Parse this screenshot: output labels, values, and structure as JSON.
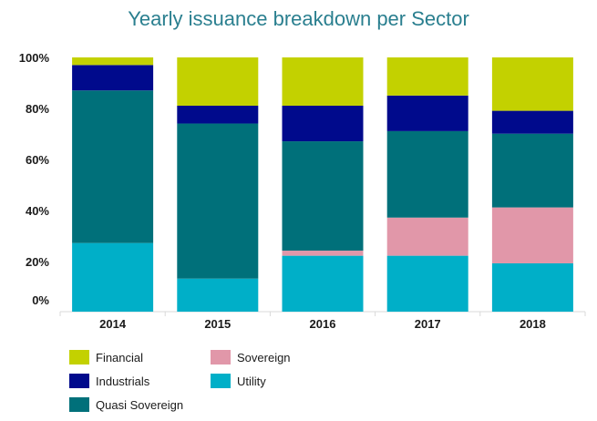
{
  "chart_data": {
    "type": "bar",
    "stacked": true,
    "title": "Yearly issuance breakdown per Sector",
    "xlabel": "",
    "ylabel": "",
    "categories": [
      "2014",
      "2015",
      "2016",
      "2017",
      "2018"
    ],
    "y_ticks": [
      "0%",
      "20%",
      "40%",
      "60%",
      "80%",
      "100%"
    ],
    "ylim": [
      0,
      100
    ],
    "grid": false,
    "legend_placement": "bottom-left",
    "series": [
      {
        "name": "Utility",
        "color": "#00afc8",
        "values": [
          27,
          13,
          22,
          22,
          19
        ]
      },
      {
        "name": "Sovereign",
        "color": "#e197a9",
        "values": [
          0,
          0,
          2,
          15,
          22
        ]
      },
      {
        "name": "Quasi Sovereign",
        "color": "#00707a",
        "values": [
          60,
          61,
          43,
          34,
          29
        ]
      },
      {
        "name": "Industrials",
        "color": "#000a8c",
        "values": [
          10,
          7,
          14,
          14,
          9
        ]
      },
      {
        "name": "Financial",
        "color": "#c3d100",
        "values": [
          3,
          19,
          19,
          15,
          21
        ]
      }
    ],
    "legend_order": [
      "Financial",
      "Sovereign",
      "Industrials",
      "Utility",
      "Quasi Sovereign"
    ]
  }
}
